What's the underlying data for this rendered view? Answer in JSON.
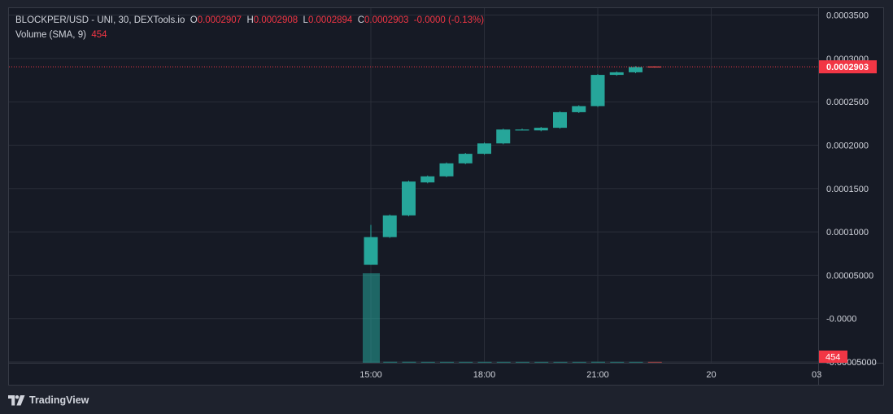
{
  "legend": {
    "symbol": "BLOCKPER/USD - UNI, 30, DEXTools.io",
    "open_label": "O",
    "open_value": "0.0002907",
    "high_label": "H",
    "high_value": "0.0002908",
    "low_label": "L",
    "low_value": "0.0002894",
    "close_label": "C",
    "close_value": "0.0002903",
    "change": "-0.0000 (-0.13%)",
    "volume_label": "Volume (SMA, 9)",
    "volume_value": "454"
  },
  "brand": {
    "name": "TradingView"
  },
  "colors": {
    "up": "#26a69a",
    "down": "#ef5350",
    "background": "#161a25",
    "grid": "#2a2e39",
    "text": "#d1d4dc",
    "last_price": "#f23645"
  },
  "chart_data": {
    "type": "candlestick",
    "title": "BLOCKPER/USD - UNI, 30, DEXTools.io",
    "interval_minutes": 30,
    "x_tick_labels": [
      "15:00",
      "18:00",
      "21:00",
      "20",
      "03"
    ],
    "y_tick_labels": [
      "0.0003500",
      "0.0003000",
      "0.0002500",
      "0.0002000",
      "0.0001500",
      "0.0001000",
      "0.00005000",
      "-0.0000",
      "-0.00005000"
    ],
    "y_range": [
      -5e-05,
      0.00035
    ],
    "last_price": "0.0002903",
    "last_volume": "454",
    "grid": true,
    "candles": [
      {
        "time": "15:00",
        "open": 6.2e-05,
        "high": 0.000108,
        "low": 6.2e-05,
        "close": 9.4e-05
      },
      {
        "time": "15:30",
        "open": 9.4e-05,
        "high": 0.00012,
        "low": 9.3e-05,
        "close": 0.000119
      },
      {
        "time": "16:00",
        "open": 0.000119,
        "high": 0.000159,
        "low": 0.000118,
        "close": 0.000158
      },
      {
        "time": "16:30",
        "open": 0.000157,
        "high": 0.000165,
        "low": 0.000156,
        "close": 0.000164
      },
      {
        "time": "17:00",
        "open": 0.000164,
        "high": 0.00018,
        "low": 0.000163,
        "close": 0.000179
      },
      {
        "time": "17:30",
        "open": 0.000179,
        "high": 0.000191,
        "low": 0.000178,
        "close": 0.00019
      },
      {
        "time": "18:00",
        "open": 0.00019,
        "high": 0.000203,
        "low": 0.000189,
        "close": 0.000202
      },
      {
        "time": "18:30",
        "open": 0.000202,
        "high": 0.000219,
        "low": 0.000201,
        "close": 0.000218
      },
      {
        "time": "19:00",
        "open": 0.000218,
        "high": 0.000219,
        "low": 0.000217,
        "close": 0.000218
      },
      {
        "time": "19:30",
        "open": 0.000217,
        "high": 0.000221,
        "low": 0.000216,
        "close": 0.00022
      },
      {
        "time": "20:00",
        "open": 0.00022,
        "high": 0.000239,
        "low": 0.000219,
        "close": 0.000238
      },
      {
        "time": "20:30",
        "open": 0.000238,
        "high": 0.000246,
        "low": 0.000237,
        "close": 0.000245
      },
      {
        "time": "21:00",
        "open": 0.000245,
        "high": 0.000282,
        "low": 0.000244,
        "close": 0.000281
      },
      {
        "time": "21:30",
        "open": 0.000281,
        "high": 0.000285,
        "low": 0.00028,
        "close": 0.000284
      },
      {
        "time": "22:00",
        "open": 0.000284,
        "high": 0.000291,
        "low": 0.000283,
        "close": 0.00029
      },
      {
        "time": "22:30",
        "open": 0.0002907,
        "high": 0.0002908,
        "low": 0.0002894,
        "close": 0.0002903
      }
    ],
    "volume": [
      {
        "time": "15:00",
        "value": 10000000,
        "direction": "up"
      },
      {
        "time": "15:30",
        "value": 120000,
        "direction": "up"
      },
      {
        "time": "16:00",
        "value": 120000,
        "direction": "up"
      },
      {
        "time": "16:30",
        "value": 50000,
        "direction": "up"
      },
      {
        "time": "17:00",
        "value": 50000,
        "direction": "up"
      },
      {
        "time": "17:30",
        "value": 40000,
        "direction": "up"
      },
      {
        "time": "18:00",
        "value": 40000,
        "direction": "up"
      },
      {
        "time": "18:30",
        "value": 40000,
        "direction": "up"
      },
      {
        "time": "19:00",
        "value": 30000,
        "direction": "up"
      },
      {
        "time": "19:30",
        "value": 30000,
        "direction": "up"
      },
      {
        "time": "20:00",
        "value": 30000,
        "direction": "up"
      },
      {
        "time": "20:30",
        "value": 40000,
        "direction": "up"
      },
      {
        "time": "21:00",
        "value": 120000,
        "direction": "up"
      },
      {
        "time": "21:30",
        "value": 40000,
        "direction": "up"
      },
      {
        "time": "22:00",
        "value": 40000,
        "direction": "up"
      },
      {
        "time": "22:30",
        "value": 454,
        "direction": "down"
      }
    ],
    "volume_range": [
      0,
      20000000
    ]
  }
}
